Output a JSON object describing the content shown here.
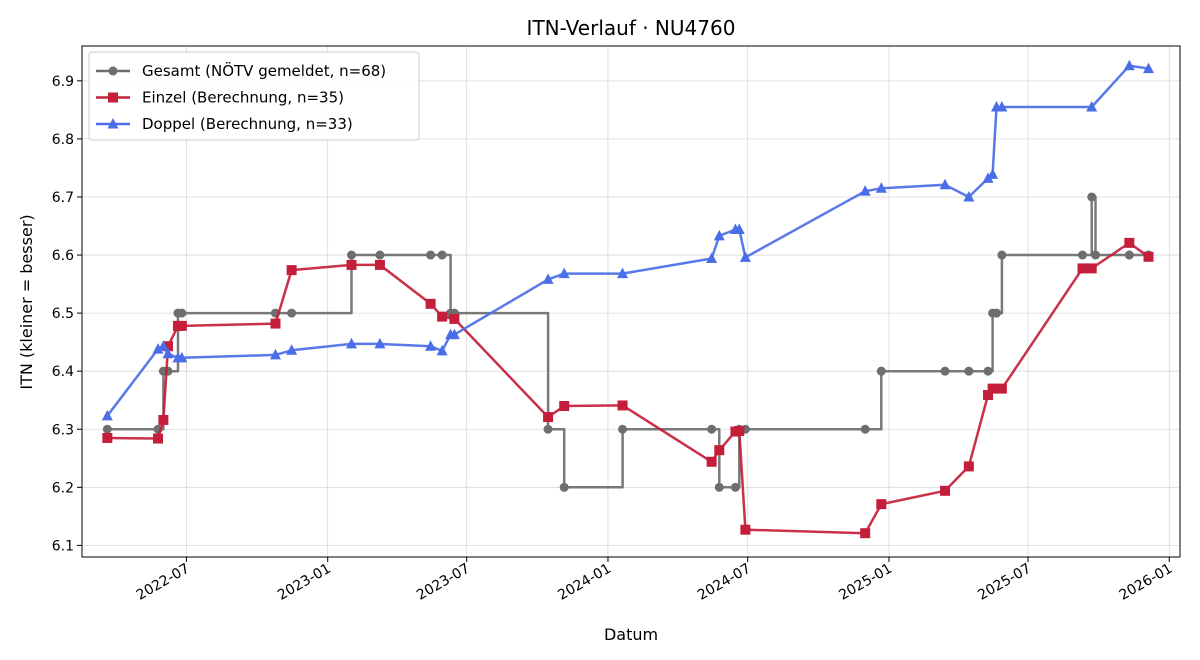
{
  "chart_data": {
    "type": "line",
    "title": "ITN-Verlauf · NU4760",
    "xlabel": "Datum",
    "ylabel": "ITN  (kleiner = besser)",
    "x_ticks": [
      "2022-07-01",
      "2023-01-01",
      "2023-07-01",
      "2024-01-01",
      "2024-07-01",
      "2025-01-01",
      "2025-07-01",
      "2026-01-01"
    ],
    "x_tick_labels": [
      "2022-07",
      "2023-01",
      "2023-07",
      "2024-01",
      "2024-07",
      "2025-01",
      "2025-07",
      "2026-01"
    ],
    "xlim": [
      "2022-02-15",
      "2026-01-15"
    ],
    "ylim": [
      6.08,
      6.96
    ],
    "y_ticks": [
      6.1,
      6.2,
      6.3,
      6.4,
      6.5,
      6.6,
      6.7,
      6.8,
      6.9
    ],
    "y_tick_labels": [
      "6.1",
      "6.2",
      "6.3",
      "6.4",
      "6.5",
      "6.6",
      "6.7",
      "6.8",
      "6.9"
    ],
    "grid": true,
    "legend_position": "top-left",
    "series": [
      {
        "name": "Gesamt (NÖTV gemeldet, n=68)",
        "color": "#6e6e6e",
        "marker": "circle",
        "step": "post",
        "points": [
          [
            "2022-03-20",
            6.3
          ],
          [
            "2022-05-25",
            6.3
          ],
          [
            "2022-06-01",
            6.4
          ],
          [
            "2022-06-07",
            6.4
          ],
          [
            "2022-06-20",
            6.5
          ],
          [
            "2022-06-25",
            6.5
          ],
          [
            "2022-10-25",
            6.5
          ],
          [
            "2022-11-15",
            6.5
          ],
          [
            "2023-02-01",
            6.6
          ],
          [
            "2023-03-10",
            6.6
          ],
          [
            "2023-05-15",
            6.6
          ],
          [
            "2023-05-30",
            6.6
          ],
          [
            "2023-06-10",
            6.5
          ],
          [
            "2023-06-15",
            6.5
          ],
          [
            "2023-10-15",
            6.3
          ],
          [
            "2023-11-05",
            6.2
          ],
          [
            "2024-01-20",
            6.3
          ],
          [
            "2024-05-15",
            6.3
          ],
          [
            "2024-05-25",
            6.2
          ],
          [
            "2024-06-15",
            6.2
          ],
          [
            "2024-06-20",
            6.3
          ],
          [
            "2024-06-28",
            6.3
          ],
          [
            "2024-12-01",
            6.3
          ],
          [
            "2024-12-22",
            6.4
          ],
          [
            "2025-03-15",
            6.4
          ],
          [
            "2025-04-15",
            6.4
          ],
          [
            "2025-05-10",
            6.4
          ],
          [
            "2025-05-16",
            6.5
          ],
          [
            "2025-05-21",
            6.5
          ],
          [
            "2025-05-28",
            6.6
          ],
          [
            "2025-09-10",
            6.6
          ],
          [
            "2025-09-22",
            6.7
          ],
          [
            "2025-09-27",
            6.6
          ],
          [
            "2025-11-10",
            6.6
          ],
          [
            "2025-12-05",
            6.6
          ]
        ]
      },
      {
        "name": "Einzel (Berechnung, n=35)",
        "color": "#c41e3a",
        "marker": "square",
        "step": "none",
        "points": [
          [
            "2022-03-20",
            6.285
          ],
          [
            "2022-05-25",
            6.284
          ],
          [
            "2022-06-01",
            6.316
          ],
          [
            "2022-06-07",
            6.443
          ],
          [
            "2022-06-20",
            6.478
          ],
          [
            "2022-06-25",
            6.478
          ],
          [
            "2022-10-25",
            6.482
          ],
          [
            "2022-11-15",
            6.574
          ],
          [
            "2023-02-01",
            6.583
          ],
          [
            "2023-03-10",
            6.583
          ],
          [
            "2023-05-15",
            6.516
          ],
          [
            "2023-05-30",
            6.494
          ],
          [
            "2023-06-15",
            6.49
          ],
          [
            "2023-10-15",
            6.321
          ],
          [
            "2023-11-05",
            6.34
          ],
          [
            "2024-01-20",
            6.341
          ],
          [
            "2024-05-15",
            6.244
          ],
          [
            "2024-05-25",
            6.264
          ],
          [
            "2024-06-15",
            6.296
          ],
          [
            "2024-06-20",
            6.297
          ],
          [
            "2024-06-28",
            6.127
          ],
          [
            "2024-12-01",
            6.121
          ],
          [
            "2024-12-22",
            6.171
          ],
          [
            "2025-03-15",
            6.194
          ],
          [
            "2025-04-15",
            6.236
          ],
          [
            "2025-05-10",
            6.359
          ],
          [
            "2025-05-16",
            6.37
          ],
          [
            "2025-05-28",
            6.37
          ],
          [
            "2025-09-10",
            6.577
          ],
          [
            "2025-09-22",
            6.577
          ],
          [
            "2025-11-10",
            6.621
          ],
          [
            "2025-12-05",
            6.597
          ]
        ]
      },
      {
        "name": "Doppel (Berechnung, n=33)",
        "color": "#4a6ee8",
        "marker": "triangle",
        "step": "none",
        "points": [
          [
            "2022-03-20",
            6.323
          ],
          [
            "2022-05-25",
            6.438
          ],
          [
            "2022-06-01",
            6.443
          ],
          [
            "2022-06-07",
            6.43
          ],
          [
            "2022-06-20",
            6.423
          ],
          [
            "2022-06-25",
            6.423
          ],
          [
            "2022-10-25",
            6.428
          ],
          [
            "2022-11-15",
            6.436
          ],
          [
            "2023-02-01",
            6.447
          ],
          [
            "2023-03-10",
            6.447
          ],
          [
            "2023-05-15",
            6.443
          ],
          [
            "2023-05-30",
            6.435
          ],
          [
            "2023-06-10",
            6.463
          ],
          [
            "2023-06-15",
            6.463
          ],
          [
            "2023-10-15",
            6.558
          ],
          [
            "2023-11-05",
            6.568
          ],
          [
            "2024-01-20",
            6.568
          ],
          [
            "2024-05-15",
            6.594
          ],
          [
            "2024-05-25",
            6.633
          ],
          [
            "2024-06-15",
            6.644
          ],
          [
            "2024-06-20",
            6.644
          ],
          [
            "2024-06-28",
            6.596
          ],
          [
            "2024-12-01",
            6.71
          ],
          [
            "2024-12-22",
            6.715
          ],
          [
            "2025-03-15",
            6.721
          ],
          [
            "2025-04-15",
            6.7
          ],
          [
            "2025-05-10",
            6.732
          ],
          [
            "2025-05-16",
            6.739
          ],
          [
            "2025-05-21",
            6.855
          ],
          [
            "2025-05-28",
            6.855
          ],
          [
            "2025-09-22",
            6.855
          ],
          [
            "2025-11-10",
            6.926
          ],
          [
            "2025-12-05",
            6.921
          ]
        ]
      }
    ]
  }
}
